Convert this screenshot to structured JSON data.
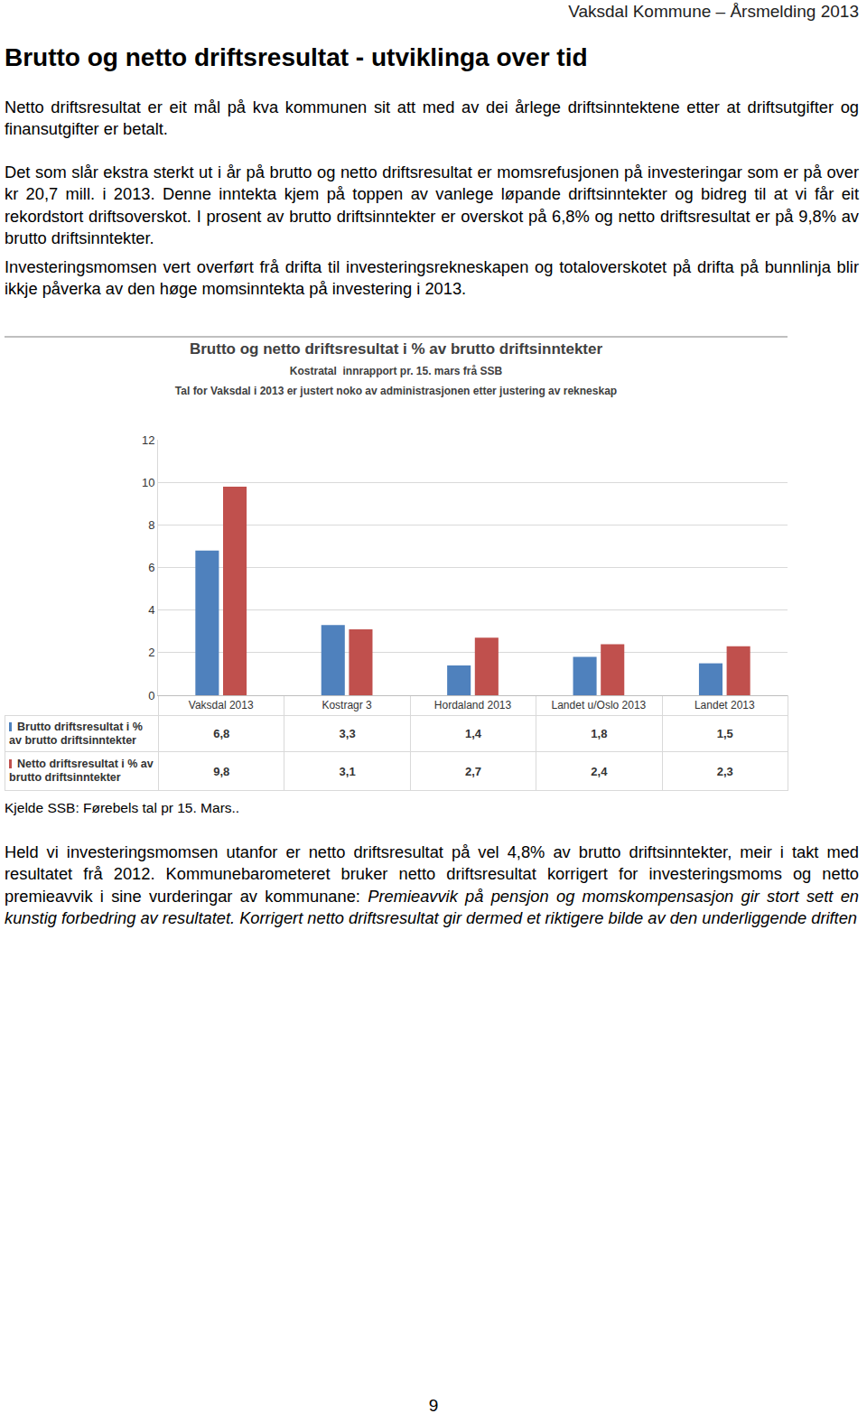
{
  "header": "Vaksdal Kommune – Årsmelding 2013",
  "title": "Brutto og netto driftsresultat - utviklinga over tid",
  "paragraphs": [
    "Netto driftsresultat er eit mål på kva kommunen sit att med av dei årlege driftsinntektene etter at driftsutgifter og finansutgifter er betalt.",
    "Det som slår ekstra sterkt ut i år på brutto og netto driftsresultat er momsrefusjonen på investeringar som er på over kr 20,7 mill. i 2013. Denne inntekta kjem på toppen av vanlege løpande driftsinntekter og bidreg til at vi får eit rekordstort driftsoverskot. I prosent av brutto driftsinntekter er overskot på 6,8% og netto driftsresultat er på 9,8% av brutto driftsinntekter.",
    "Investeringsmomsen vert overført frå drifta til investeringsrekneskapen og totaloverskotet på drifta på bunnlinja blir ikkje påverka av den høge momsinntekta på investering i 2013."
  ],
  "chart_data": {
    "type": "bar",
    "title": "Brutto og netto driftsresultat i % av brutto driftsinntekter",
    "subtitle": [
      "Kostratal  innrapport pr. 15. mars frå SSB",
      "Tal for Vaksdal i 2013 er justert noko av administrasjonen etter justering av rekneskap"
    ],
    "categories": [
      "Vaksdal 2013",
      "Kostragr 3",
      "Hordaland 2013",
      "Landet u/Oslo 2013",
      "Landet 2013"
    ],
    "series": [
      {
        "name": "Brutto driftsresultat i % av brutto driftsinntekter",
        "color": "#4f81bd",
        "values": [
          6.8,
          3.3,
          1.4,
          1.8,
          1.5
        ],
        "value_labels": [
          "6,8",
          "3,3",
          "1,4",
          "1,8",
          "1,5"
        ]
      },
      {
        "name": "Netto driftsresultat i % av brutto driftsinntekter",
        "color": "#c0504d",
        "values": [
          9.8,
          3.1,
          2.7,
          2.4,
          2.3
        ],
        "value_labels": [
          "9,8",
          "3,1",
          "2,7",
          "2,4",
          "2,3"
        ]
      }
    ],
    "ylim": [
      0,
      12
    ],
    "yticks": [
      0,
      2,
      4,
      6,
      8,
      10,
      12
    ],
    "grid": true
  },
  "source": "Kjelde SSB: Førebels tal pr 15. Mars..",
  "closing": {
    "text": "Held vi investeringsmomsen utanfor er netto driftsresultat på vel 4,8% av brutto driftsinntekter, meir i takt med resultatet frå 2012. Kommunebarometeret bruker netto driftsresultat korrigert for investeringsmoms og netto premieavvik i sine vurderingar av kommunane: ",
    "italic": "Premieavvik på pensjon og momskompensasjon gir stort sett en kunstig forbedring av resultatet. Korrigert netto driftsresultat gir dermed et riktigere bilde av den underliggende driften"
  },
  "page_number": 9
}
